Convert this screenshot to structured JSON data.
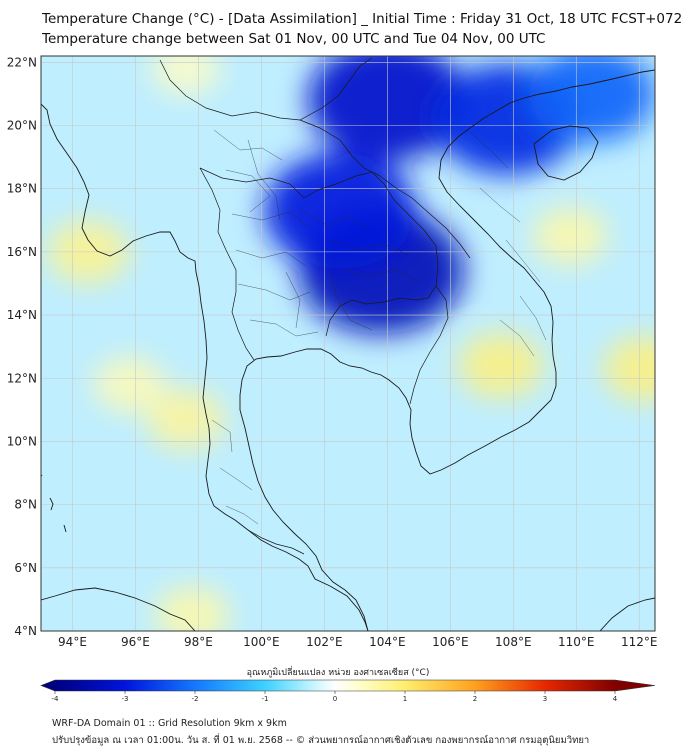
{
  "header": {
    "title_line1": "Temperature Change (°C) - [Data Assimilation] _ Initial Time : Friday 31 Oct, 18 UTC FCST+072",
    "title_line2": "Temperature change between Sat 01 Nov, 00 UTC and Tue 04 Nov, 00 UTC"
  },
  "map": {
    "lat_labels": [
      "22°N",
      "20°N",
      "18°N",
      "16°N",
      "14°N",
      "12°N",
      "10°N",
      "8°N",
      "6°N",
      "4°N"
    ],
    "lat_values": [
      22,
      20,
      18,
      16,
      14,
      12,
      10,
      8,
      6,
      4
    ],
    "lon_labels": [
      "94°E",
      "96°E",
      "98°E",
      "100°E",
      "102°E",
      "104°E",
      "106°E",
      "108°E",
      "110°E",
      "112°E"
    ],
    "lon_values": [
      94,
      96,
      98,
      100,
      102,
      104,
      106,
      108,
      110,
      112
    ],
    "lon_range": [
      93.0,
      112.5
    ],
    "lat_range": [
      4.0,
      22.2
    ],
    "anomalies": [
      {
        "name": "cooling-north-vietnam",
        "lon": 104.0,
        "lat": 20.8,
        "value": -3.2
      },
      {
        "name": "cooling-northeast-thailand",
        "lon": 103.8,
        "lat": 15.4,
        "value": -3.4
      },
      {
        "name": "cooling-laos",
        "lon": 102.5,
        "lat": 17.3,
        "value": -3.0
      },
      {
        "name": "cooling-gulf-of-tonkin",
        "lon": 107.8,
        "lat": 20.2,
        "value": -2.8
      },
      {
        "name": "cooling-south-china-sea",
        "lon": 110.5,
        "lat": 21.0,
        "value": -2.2
      },
      {
        "name": "warming-south-vietnam",
        "lon": 107.6,
        "lat": 12.4,
        "value": 0.9
      },
      {
        "name": "warming-hainan-east",
        "lon": 109.8,
        "lat": 16.5,
        "value": 0.6
      },
      {
        "name": "warming-myanmar-coast",
        "lon": 94.5,
        "lat": 16.0,
        "value": 0.8
      },
      {
        "name": "warming-andaman-sea",
        "lon": 97.6,
        "lat": 10.7,
        "value": 0.7
      },
      {
        "name": "warming-andaman-west",
        "lon": 95.8,
        "lat": 11.8,
        "value": 0.5
      },
      {
        "name": "warming-east-sea",
        "lon": 112.2,
        "lat": 12.3,
        "value": 0.9
      },
      {
        "name": "warming-sumatra-north",
        "lon": 97.8,
        "lat": 4.5,
        "value": 0.6
      },
      {
        "name": "warming-yunnan-west",
        "lon": 97.6,
        "lat": 21.8,
        "value": 0.4
      }
    ]
  },
  "colorbar": {
    "title": "อุณหภูมิเปลี่ยนแปลง หน่วย องศาเซลเซียส (°C)",
    "tick_labels": [
      "-4",
      "-3",
      "-2",
      "-1",
      "0",
      "1",
      "2",
      "3",
      "4"
    ],
    "tick_values": [
      -4,
      -3,
      -2,
      -1,
      0,
      1,
      2,
      3,
      4
    ],
    "range": [
      -4,
      4
    ]
  },
  "footer": {
    "line1": "WRF-DA Domain 01 :: Grid Resolution 9km x 9km",
    "line2": "ปรับปรุงข้อมูล ณ เวลา 01:00น. วัน ส. ที่ 01 พ.ย. 2568 -- © ส่วนพยากรณ์อากาศเชิงตัวเลข กองพยากรณ์อากาศ กรมอุตุนิยมวิทยา"
  },
  "colors": {
    "background": "#ffffff",
    "coast": "#1a1a1a",
    "grid": "#c8c8c8",
    "scale_min": "#000080",
    "scale_mid": "#ffffff",
    "scale_max": "#800000"
  }
}
